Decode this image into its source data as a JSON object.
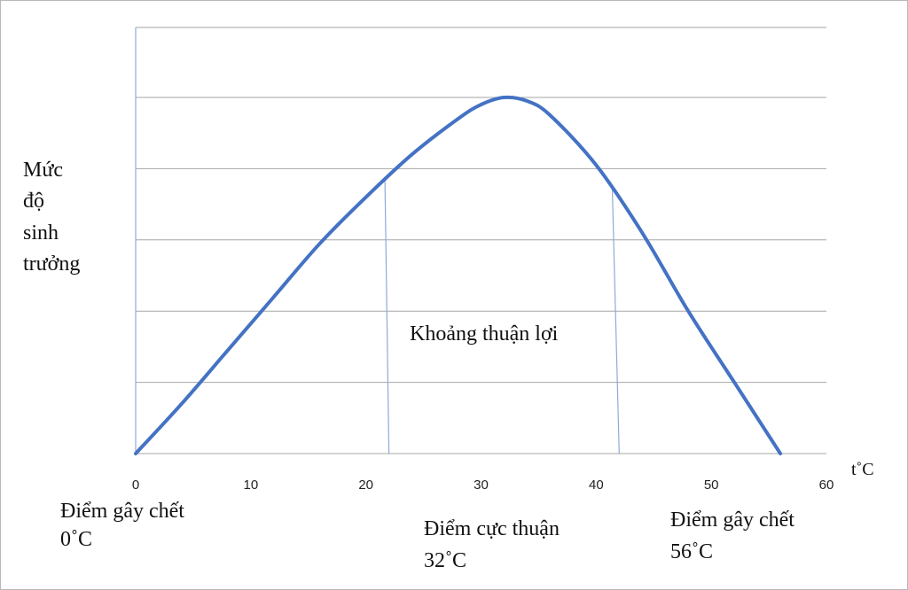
{
  "chart_data": {
    "type": "line",
    "ylabel_lines": [
      "Mức",
      "độ",
      "sinh",
      "trưởng"
    ],
    "xunit": "t˚C",
    "xlim": [
      0,
      60
    ],
    "xticks": [
      0,
      10,
      20,
      30,
      40,
      50,
      60
    ],
    "ylim": [
      0,
      5
    ],
    "grid": true,
    "series": [
      {
        "x": [
          0,
          4,
          8,
          12,
          16,
          20,
          24,
          28,
          30,
          32,
          34,
          36,
          40,
          44,
          48,
          52,
          56
        ],
        "y": [
          0,
          0.7,
          1.45,
          2.2,
          2.95,
          3.6,
          4.2,
          4.7,
          4.9,
          5.0,
          4.95,
          4.75,
          4.05,
          3.1,
          2.0,
          1.0,
          0
        ]
      }
    ],
    "favorable_range": {
      "label": "Khoảng thuận lợi",
      "from": 22,
      "to": 42
    },
    "annotations": [
      {
        "lines": [
          "Điểm gây chết",
          "0˚C"
        ],
        "value": 0
      },
      {
        "lines": [
          "Điểm cực thuận",
          "32˚C"
        ],
        "value": 32
      },
      {
        "lines": [
          "Điểm gây chết",
          "56˚C"
        ],
        "value": 56
      }
    ],
    "colors": {
      "curve": "#4472c4",
      "axis": "#8eaadb",
      "grid": "#a6a6a6",
      "range_line": "#8eaadb"
    }
  }
}
